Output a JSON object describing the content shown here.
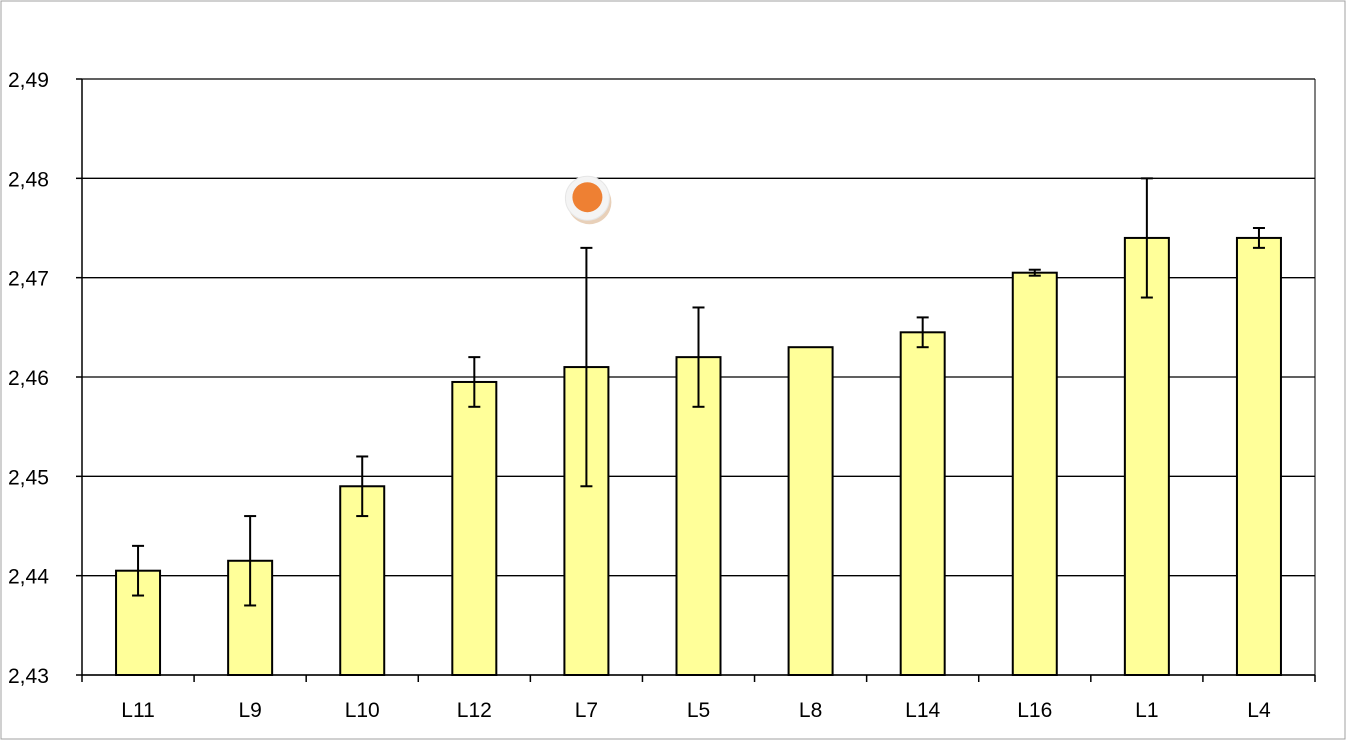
{
  "chart_data": {
    "type": "bar",
    "title": "",
    "xlabel": "",
    "ylabel": "",
    "categories": [
      "L11",
      "L9",
      "L10",
      "L12",
      "L7",
      "L5",
      "L8",
      "L14",
      "L16",
      "L1",
      "L4"
    ],
    "values": [
      2.4405,
      2.4415,
      2.449,
      2.4595,
      2.461,
      2.462,
      2.463,
      2.4645,
      2.4705,
      2.474,
      2.474
    ],
    "error_low": [
      2.438,
      2.437,
      2.446,
      2.457,
      2.449,
      2.457,
      null,
      2.463,
      2.4702,
      2.468,
      2.473
    ],
    "error_high": [
      2.443,
      2.446,
      2.452,
      2.462,
      2.473,
      2.467,
      null,
      2.466,
      2.4708,
      2.48,
      2.475
    ],
    "ylim": [
      2.43,
      2.49
    ],
    "yticks": [
      2.43,
      2.44,
      2.45,
      2.46,
      2.47,
      2.48,
      2.49
    ],
    "ytick_labels": [
      "2,43",
      "2,44",
      "2,45",
      "2,46",
      "2,47",
      "2,48",
      "2,49"
    ],
    "grid": true,
    "legend": "none",
    "bar_color": "#FFFF99",
    "bar_edge_color": "#000000",
    "marker": {
      "category": "L7",
      "value": 2.478,
      "color": "#EE8033"
    }
  }
}
